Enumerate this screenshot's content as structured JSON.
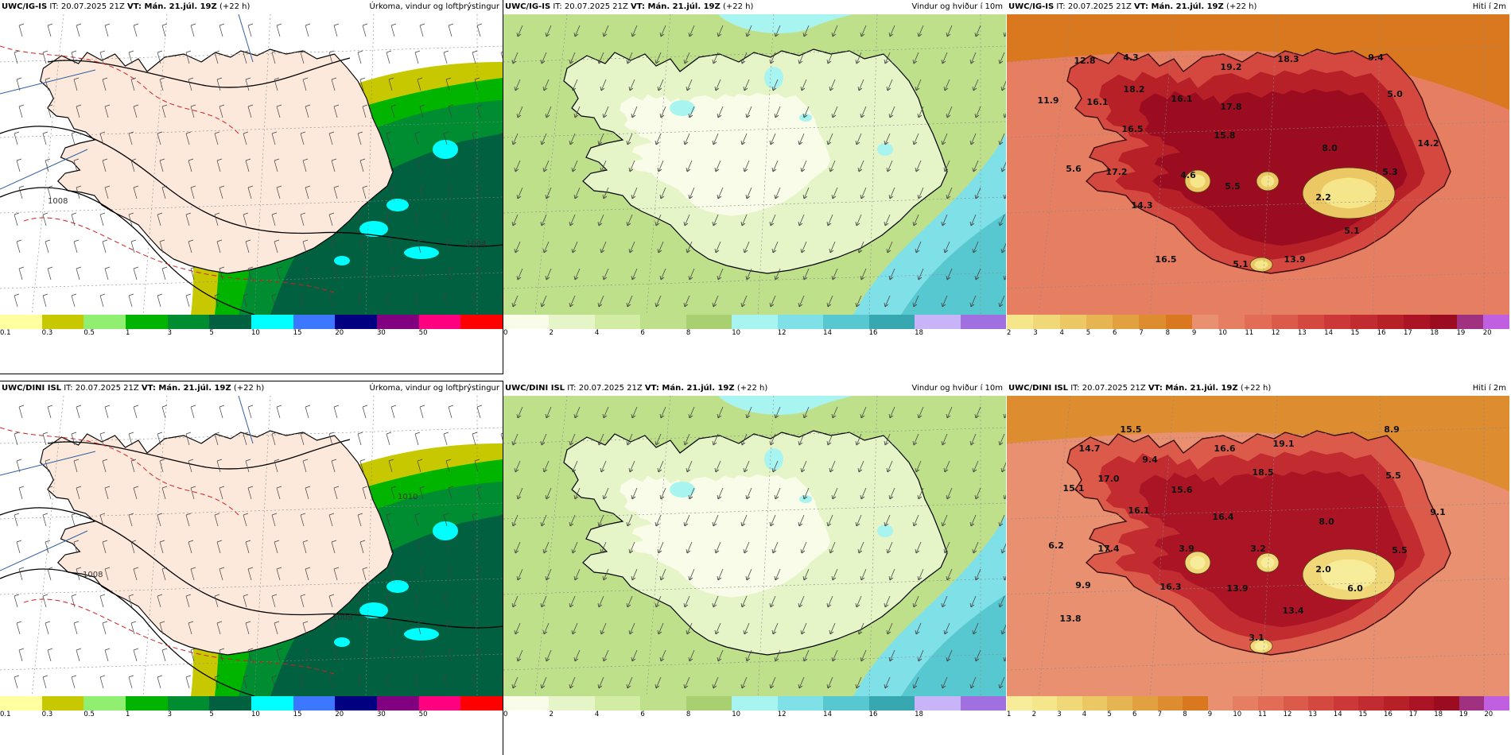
{
  "panels": [
    {
      "id": "igis-precip",
      "model": "UWC/IG-IS",
      "init": "IT: 20.07.2025 21Z",
      "valid": "VT: Mán. 21.júl. 19Z",
      "lead": "(+22 h)",
      "title": "Úrkoma, vindur og loftþrýstingur",
      "field": "precip",
      "isobar_labels": [
        "1008",
        "1004"
      ],
      "temp_labels": [],
      "scale": {
        "labels": [
          "0.1",
          "0.3",
          "0.5",
          "1",
          "3",
          "5",
          "10",
          "15",
          "20",
          "30",
          "50"
        ],
        "colors": [
          "#ffffa0",
          "#c8c800",
          "#90ee70",
          "#00b400",
          "#008c30",
          "#006040",
          "#00ffff",
          "#3c78ff",
          "#000080",
          "#800080",
          "#ff0080",
          "#ff0000"
        ]
      }
    },
    {
      "id": "igis-wind",
      "model": "UWC/IG-IS",
      "init": "IT: 20.07.2025 21Z",
      "valid": "VT: Mán. 21.júl. 19Z",
      "lead": "(+22 h)",
      "title": "Vindur og hviður í 10m",
      "field": "wind",
      "isobar_labels": [],
      "temp_labels": [],
      "scale": {
        "labels": [
          "0",
          "2",
          "4",
          "6",
          "8",
          "10",
          "12",
          "14",
          "16",
          "18"
        ],
        "colors": [
          "#f8fce8",
          "#e6f5c8",
          "#d2eca4",
          "#bfe08a",
          "#a8d070",
          "#a8f4f0",
          "#80e0e8",
          "#58c8d0",
          "#38a8b0",
          "#c8b4f8",
          "#a070e0"
        ]
      }
    },
    {
      "id": "igis-temp",
      "model": "UWC/IG-IS",
      "init": "IT: 20.07.2025 21Z",
      "valid": "VT: Mán. 21.júl. 19Z",
      "lead": "(+22 h)",
      "title": "Hiti í 2m",
      "field": "temp",
      "isobar_labels": [],
      "temp_labels": [
        {
          "text": "12.8"
        },
        {
          "text": "4.3"
        },
        {
          "text": "19.2"
        },
        {
          "text": "18.3"
        },
        {
          "text": "9.4"
        },
        {
          "text": "11.9"
        },
        {
          "text": "16.1"
        },
        {
          "text": "18.2"
        },
        {
          "text": "16.1"
        },
        {
          "text": "17.8"
        },
        {
          "text": "5.0"
        },
        {
          "text": "16.5"
        },
        {
          "text": "15.8"
        },
        {
          "text": "8.0"
        },
        {
          "text": "14.2"
        },
        {
          "text": "5.6"
        },
        {
          "text": "17.2"
        },
        {
          "text": "4.6"
        },
        {
          "text": "5.5"
        },
        {
          "text": "5.3"
        },
        {
          "text": "2.2"
        },
        {
          "text": "14.3"
        },
        {
          "text": "5.1"
        },
        {
          "text": "16.5"
        },
        {
          "text": "5.1"
        },
        {
          "text": "13.9"
        }
      ],
      "scale": {
        "labels": [
          "2",
          "3",
          "4",
          "5",
          "6",
          "7",
          "8",
          "9",
          "10",
          "11",
          "12",
          "13",
          "14",
          "15",
          "16",
          "17",
          "18",
          "19",
          "20"
        ],
        "colors": [
          "#f5e68c",
          "#f0d878",
          "#ecc864",
          "#e6b450",
          "#e2a040",
          "#de8c30",
          "#da7820",
          "#e89070",
          "#e67e62",
          "#e26c56",
          "#dc5a4a",
          "#d44840",
          "#cc3838",
          "#c22c30",
          "#b82028",
          "#aa1424",
          "#9c0c20",
          "#a03080",
          "#c060e0"
        ]
      }
    },
    {
      "id": "dini-precip",
      "model": "UWC/DINI ISL",
      "init": "IT: 20.07.2025 21Z",
      "valid": "VT: Mán. 21.júl. 19Z",
      "lead": "(+22 h)",
      "title": "Úrkoma, vindur og loftþrýstingur",
      "field": "precip",
      "isobar_labels": [
        "1010",
        "1008",
        "1008"
      ],
      "temp_labels": [],
      "scale": {
        "labels": [
          "0.1",
          "0.3",
          "0.5",
          "1",
          "3",
          "5",
          "10",
          "15",
          "20",
          "30",
          "50"
        ],
        "colors": [
          "#ffffa0",
          "#c8c800",
          "#90ee70",
          "#00b400",
          "#008c30",
          "#006040",
          "#00ffff",
          "#3c78ff",
          "#000080",
          "#800080",
          "#ff0080",
          "#ff0000"
        ]
      }
    },
    {
      "id": "dini-wind",
      "model": "UWC/DINI ISL",
      "init": "IT: 20.07.2025 21Z",
      "valid": "VT: Mán. 21.júl. 19Z",
      "lead": "(+22 h)",
      "title": "Vindur og hviður í 10m",
      "field": "wind",
      "isobar_labels": [],
      "temp_labels": [],
      "scale": {
        "labels": [
          "0",
          "2",
          "4",
          "6",
          "8",
          "10",
          "12",
          "14",
          "16",
          "18"
        ],
        "colors": [
          "#f8fce8",
          "#e6f5c8",
          "#d2eca4",
          "#bfe08a",
          "#a8d070",
          "#a8f4f0",
          "#80e0e8",
          "#58c8d0",
          "#38a8b0",
          "#c8b4f8",
          "#a070e0"
        ]
      }
    },
    {
      "id": "dini-temp",
      "model": "UWC/DINI ISL",
      "init": "IT: 20.07.2025 21Z",
      "valid": "VT: Mán. 21.júl. 19Z",
      "lead": "(+22 h)",
      "title": "Hiti í 2m",
      "field": "temp",
      "isobar_labels": [],
      "temp_labels": [
        {
          "text": "15.5"
        },
        {
          "text": "14.7"
        },
        {
          "text": "9.4"
        },
        {
          "text": "16.6"
        },
        {
          "text": "19.1"
        },
        {
          "text": "8.9"
        },
        {
          "text": "15.1"
        },
        {
          "text": "17.0"
        },
        {
          "text": "15.6"
        },
        {
          "text": "18.5"
        },
        {
          "text": "5.5"
        },
        {
          "text": "16.1"
        },
        {
          "text": "16.4"
        },
        {
          "text": "8.0"
        },
        {
          "text": "9.1"
        },
        {
          "text": "6.2"
        },
        {
          "text": "17.4"
        },
        {
          "text": "3.9"
        },
        {
          "text": "3.2"
        },
        {
          "text": "5.5"
        },
        {
          "text": "2.0"
        },
        {
          "text": "9.9"
        },
        {
          "text": "16.3"
        },
        {
          "text": "13.9"
        },
        {
          "text": "6.0"
        },
        {
          "text": "13.4"
        },
        {
          "text": "13.8"
        },
        {
          "text": "3.1"
        }
      ],
      "scale": {
        "labels": [
          "1",
          "2",
          "3",
          "4",
          "5",
          "6",
          "7",
          "8",
          "9",
          "10",
          "11",
          "12",
          "13",
          "14",
          "15",
          "16",
          "17",
          "18",
          "19",
          "20"
        ],
        "colors": [
          "#f7ec9a",
          "#f5e68c",
          "#f0d878",
          "#ecc864",
          "#e6b450",
          "#e2a040",
          "#de8c30",
          "#da7820",
          "#e89070",
          "#e67e62",
          "#e26c56",
          "#dc5a4a",
          "#d44840",
          "#cc3838",
          "#c22c30",
          "#b82028",
          "#aa1424",
          "#9c0c20",
          "#a03080",
          "#c060e0"
        ]
      }
    }
  ]
}
